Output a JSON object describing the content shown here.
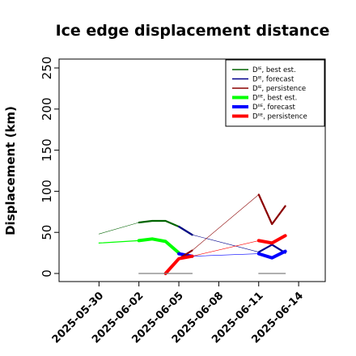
{
  "chart_data": {
    "type": "line",
    "title": "Ice edge displacement distance",
    "xlabel": "",
    "ylabel": "Displacement (km)",
    "ylim": [
      0,
      260
    ],
    "xlim": [
      "2025-05-27",
      "2025-06-16"
    ],
    "x_ticks": [
      "2025-05-30",
      "2025-06-02",
      "2025-06-05",
      "2025-06-08",
      "2025-06-11",
      "2025-06-14"
    ],
    "y_ticks": [
      0,
      50,
      100,
      150,
      200,
      250
    ],
    "highlight_tick": "2025-06-05",
    "highlight_color": "#228B22",
    "grid": false,
    "legend_position": "top-right",
    "legend": [
      {
        "label": "Dᴵᴱ, best est.",
        "color": "#006400",
        "weight": "thin"
      },
      {
        "label": "Dᴵᴱ, forecast",
        "color": "#00008B",
        "weight": "thin"
      },
      {
        "label": "Dᴵᴱ, persistence",
        "color": "#8B0000",
        "weight": "thin"
      },
      {
        "label": "Dᴵᴵᴱ, best est.",
        "color": "#00FF00",
        "weight": "thick"
      },
      {
        "label": "Dᴵᴵᴱ, forecast",
        "color": "#0000FF",
        "weight": "thick"
      },
      {
        "label": "Dᴵᴵᴱ, persistence",
        "color": "#FF0000",
        "weight": "thick"
      }
    ],
    "series": [
      {
        "color": "#006400",
        "weight": "hair",
        "x": [
          "2025-05-30",
          "2025-06-02"
        ],
        "y": [
          48,
          62
        ]
      },
      {
        "color": "#006400",
        "weight": "medium",
        "x": [
          "2025-06-02",
          "2025-06-03",
          "2025-06-04",
          "2025-06-05",
          "2025-06-06"
        ],
        "y": [
          62,
          64,
          64,
          57,
          47
        ]
      },
      {
        "color": "#00FF00",
        "weight": "thin",
        "x": [
          "2025-05-30",
          "2025-06-02"
        ],
        "y": [
          37,
          40
        ]
      },
      {
        "color": "#00FF00",
        "weight": "thick",
        "x": [
          "2025-06-02",
          "2025-06-03",
          "2025-06-04",
          "2025-06-05"
        ],
        "y": [
          40,
          42,
          39,
          25
        ]
      },
      {
        "color": "#00008B",
        "weight": "medium",
        "x": [
          "2025-06-05",
          "2025-06-06"
        ],
        "y": [
          57,
          47
        ]
      },
      {
        "color": "#00008B",
        "weight": "hair",
        "x": [
          "2025-06-06",
          "2025-06-11"
        ],
        "y": [
          47,
          26
        ]
      },
      {
        "color": "#00008B",
        "weight": "medium",
        "x": [
          "2025-06-11",
          "2025-06-12",
          "2025-06-13"
        ],
        "y": [
          26,
          35,
          25
        ]
      },
      {
        "color": "#0000FF",
        "weight": "thick",
        "x": [
          "2025-06-05",
          "2025-06-06"
        ],
        "y": [
          24,
          21
        ]
      },
      {
        "color": "#0000FF",
        "weight": "hair",
        "x": [
          "2025-06-06",
          "2025-06-11"
        ],
        "y": [
          21,
          24
        ]
      },
      {
        "color": "#0000FF",
        "weight": "thick",
        "x": [
          "2025-06-11",
          "2025-06-12",
          "2025-06-13"
        ],
        "y": [
          24,
          19,
          27
        ]
      },
      {
        "color": "#8B0000",
        "weight": "medium",
        "x": [
          "2025-06-04",
          "2025-06-05",
          "2025-06-06"
        ],
        "y": [
          0,
          18,
          28
        ]
      },
      {
        "color": "#8B0000",
        "weight": "hair",
        "x": [
          "2025-06-06",
          "2025-06-11"
        ],
        "y": [
          28,
          96
        ]
      },
      {
        "color": "#8B0000",
        "weight": "medium",
        "x": [
          "2025-06-11",
          "2025-06-12",
          "2025-06-13"
        ],
        "y": [
          96,
          60,
          82
        ]
      },
      {
        "color": "#FF0000",
        "weight": "thick",
        "x": [
          "2025-06-04",
          "2025-06-05",
          "2025-06-06"
        ],
        "y": [
          0,
          18,
          21
        ]
      },
      {
        "color": "#FF0000",
        "weight": "hair",
        "x": [
          "2025-06-06",
          "2025-06-11"
        ],
        "y": [
          21,
          40
        ]
      },
      {
        "color": "#FF0000",
        "weight": "thick",
        "x": [
          "2025-06-11",
          "2025-06-12",
          "2025-06-13"
        ],
        "y": [
          40,
          37,
          46
        ]
      },
      {
        "color": "#808080",
        "weight": "thin",
        "x": [
          "2025-06-02",
          "2025-06-06"
        ],
        "y": [
          0,
          0
        ]
      },
      {
        "color": "#808080",
        "weight": "thin",
        "x": [
          "2025-06-11",
          "2025-06-13"
        ],
        "y": [
          0,
          0
        ]
      }
    ]
  }
}
